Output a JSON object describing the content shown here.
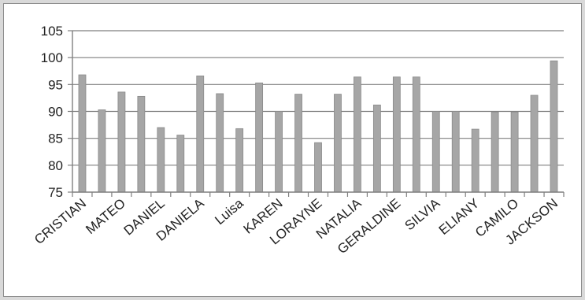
{
  "chart_data": {
    "type": "bar",
    "categories": [
      "CRISTIAN",
      "",
      "MATEO",
      "",
      "DANIEL",
      "",
      "DANIELA",
      "",
      "Luisa",
      "",
      "KAREN",
      "",
      "LORAYNE",
      "",
      "NATALIA",
      "",
      "GERALDINE",
      "",
      "SILVIA",
      "",
      "ELIANY",
      "",
      "CAMILO",
      "",
      "JACKSON"
    ],
    "values": [
      96.8,
      90.3,
      93.6,
      92.8,
      87.0,
      85.6,
      96.6,
      93.3,
      86.8,
      95.3,
      90.0,
      93.2,
      84.2,
      93.2,
      96.4,
      91.2,
      96.4,
      96.4,
      90.0,
      90.0,
      86.7,
      89.9,
      89.9,
      93.0,
      99.4
    ],
    "y_ticks": [
      75,
      80,
      85,
      90,
      95,
      100,
      105
    ],
    "ylim": [
      75,
      105
    ],
    "grid": true,
    "legend": "none",
    "colors": {
      "bar": "#a6a6a6",
      "bar_edge": "#8a8a8a",
      "grid": "#7f7f7f",
      "axis": "#7f7f7f"
    }
  }
}
